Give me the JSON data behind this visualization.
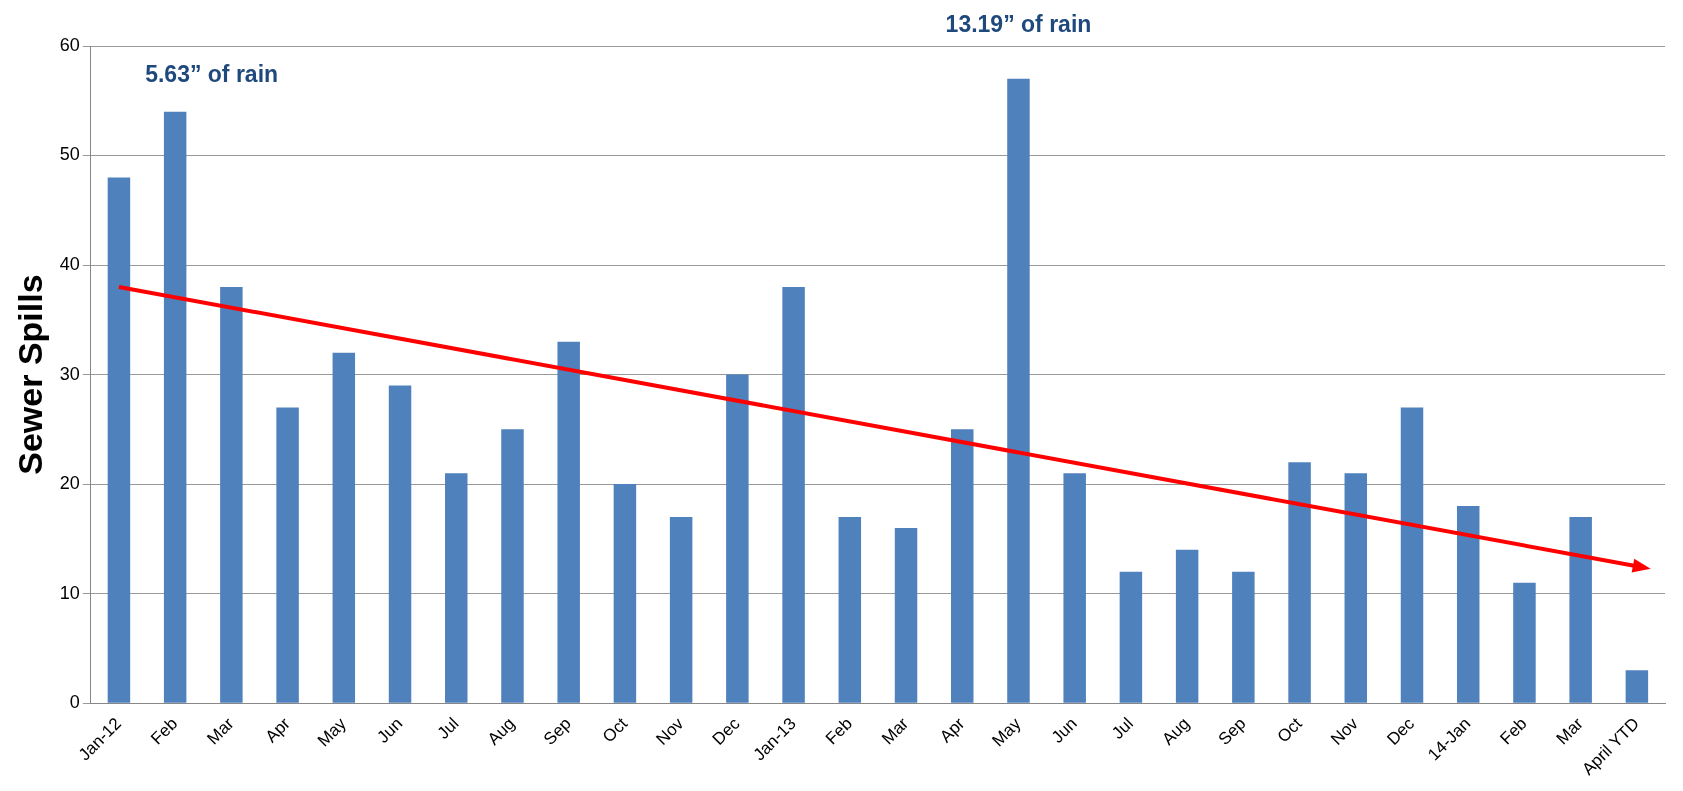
{
  "chart_data": {
    "type": "bar",
    "ylabel": "Sewer Spills",
    "categories": [
      "Jan-12",
      "Feb",
      "Mar",
      "Apr",
      "May",
      "Jun",
      "Jul",
      "Aug",
      "Sep",
      "Oct",
      "Nov",
      "Dec",
      "Jan-13",
      "Feb",
      "Mar",
      "Apr",
      "May",
      "Jun",
      "Jul",
      "Aug",
      "Sep",
      "Oct",
      "Nov",
      "Dec",
      "14-Jan",
      "Feb",
      "Mar",
      "April YTD"
    ],
    "series": [
      {
        "color": "#4f81bd",
        "values": [
          48,
          54,
          38,
          27,
          32,
          29,
          21,
          25,
          33,
          20,
          17,
          30,
          38,
          17,
          16,
          25,
          57,
          21,
          12,
          14,
          12,
          22,
          21,
          27,
          18,
          11,
          17,
          3
        ]
      },
      {
        "type": "line",
        "color": "#ff0000",
        "values": [
          38,
          null,
          null,
          null,
          null,
          null,
          null,
          null,
          null,
          null,
          null,
          null,
          null,
          null,
          null,
          null,
          null,
          null,
          null,
          null,
          null,
          null,
          null,
          null,
          null,
          null,
          null,
          12.5
        ]
      }
    ],
    "ylim": [
      0,
      60
    ],
    "yticks": [
      0,
      10,
      20,
      30,
      40,
      50,
      60
    ],
    "grid": "y",
    "legend": false,
    "annotations": [
      "5.63” of rain",
      "13.19” of rain"
    ]
  }
}
